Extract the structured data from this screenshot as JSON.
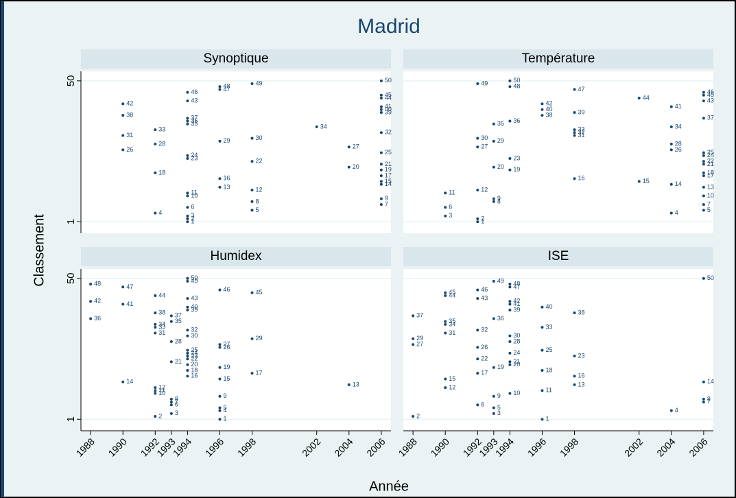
{
  "chart_data": {
    "type": "scatter",
    "title": "Madrid",
    "x_label": "Année",
    "y_label": "Classement",
    "color": "#1a476f",
    "grid": true,
    "xlim": [
      1987.4,
      2006.6
    ],
    "ylim": [
      -3,
      53.3
    ],
    "xticks": [
      1988,
      1990,
      1992,
      1993,
      1994,
      1996,
      1998,
      2002,
      2004,
      2006
    ],
    "yticks": [
      1,
      50
    ],
    "panels": [
      {
        "title": "Synoptique",
        "x": [
          1990,
          1990,
          1990,
          1990,
          1992,
          1992,
          1992,
          1992,
          1994,
          1994,
          1994,
          1994,
          1994,
          1994,
          1994,
          1994,
          1994,
          1994,
          1994,
          1994,
          1994,
          1996,
          1996,
          1996,
          1996,
          1996,
          1998,
          1998,
          1998,
          1998,
          1998,
          1998,
          2002,
          2004,
          2004,
          2006,
          2006,
          2006,
          2006,
          2006,
          2006,
          2006,
          2006,
          2006,
          2006,
          2006,
          2006,
          2006,
          2006,
          2006
        ],
        "y": [
          42,
          38,
          31,
          26,
          33,
          28,
          18,
          4,
          46,
          43,
          37,
          36,
          35,
          24,
          23,
          11,
          10,
          6,
          3,
          2,
          1,
          48,
          47,
          29,
          16,
          13,
          49,
          30,
          22,
          12,
          8,
          5,
          34,
          27,
          20,
          50,
          45,
          44,
          41,
          40,
          39,
          32,
          25,
          21,
          19,
          17,
          15,
          14,
          9,
          7
        ]
      },
      {
        "title": "Température",
        "x": [
          1990,
          1990,
          1990,
          1992,
          1992,
          1992,
          1992,
          1992,
          1992,
          1993,
          1993,
          1993,
          1993,
          1993,
          1994,
          1994,
          1994,
          1994,
          1994,
          1996,
          1996,
          1996,
          1998,
          1998,
          1998,
          1998,
          1998,
          1998,
          2002,
          2002,
          2004,
          2004,
          2004,
          2004,
          2004,
          2004,
          2006,
          2006,
          2006,
          2006,
          2006,
          2006,
          2006,
          2006,
          2006,
          2006,
          2006,
          2006,
          2006,
          2006
        ],
        "y": [
          11,
          6,
          3,
          49,
          30,
          27,
          12,
          2,
          1,
          35,
          29,
          20,
          9,
          8,
          50,
          48,
          36,
          23,
          19,
          42,
          40,
          38,
          47,
          39,
          33,
          32,
          31,
          16,
          44,
          15,
          41,
          34,
          28,
          26,
          14,
          4,
          46,
          45,
          43,
          37,
          25,
          24,
          22,
          21,
          18,
          17,
          13,
          10,
          7,
          5
        ]
      },
      {
        "title": "Humidex",
        "x": [
          1988,
          1988,
          1988,
          1990,
          1990,
          1990,
          1992,
          1992,
          1992,
          1992,
          1992,
          1992,
          1992,
          1992,
          1992,
          1993,
          1993,
          1993,
          1993,
          1993,
          1993,
          1993,
          1993,
          1994,
          1994,
          1994,
          1994,
          1994,
          1994,
          1994,
          1994,
          1994,
          1994,
          1994,
          1994,
          1994,
          1994,
          1996,
          1996,
          1996,
          1996,
          1996,
          1996,
          1996,
          1996,
          1996,
          1998,
          1998,
          1998,
          2004
        ],
        "y": [
          48,
          42,
          36,
          47,
          41,
          14,
          44,
          38,
          34,
          33,
          31,
          12,
          11,
          10,
          2,
          37,
          35,
          28,
          21,
          8,
          7,
          6,
          3,
          50,
          49,
          43,
          40,
          39,
          32,
          30,
          25,
          24,
          23,
          22,
          20,
          18,
          16,
          46,
          27,
          26,
          19,
          15,
          9,
          5,
          4,
          1,
          45,
          29,
          17,
          13
        ]
      },
      {
        "title": "ISE",
        "x": [
          1988,
          1988,
          1988,
          1988,
          1990,
          1990,
          1990,
          1990,
          1990,
          1990,
          1990,
          1992,
          1992,
          1992,
          1992,
          1992,
          1992,
          1992,
          1993,
          1993,
          1993,
          1993,
          1993,
          1993,
          1994,
          1994,
          1994,
          1994,
          1994,
          1994,
          1994,
          1994,
          1994,
          1994,
          1994,
          1996,
          1996,
          1996,
          1996,
          1996,
          1996,
          1998,
          1998,
          1998,
          1998,
          2004,
          2006,
          2006,
          2006,
          2006
        ],
        "y": [
          37,
          29,
          27,
          2,
          45,
          44,
          35,
          34,
          31,
          15,
          12,
          46,
          43,
          32,
          26,
          22,
          17,
          6,
          49,
          36,
          19,
          9,
          5,
          3,
          48,
          47,
          42,
          41,
          39,
          30,
          28,
          24,
          21,
          20,
          10,
          40,
          33,
          25,
          18,
          11,
          1,
          38,
          23,
          16,
          13,
          4,
          50,
          14,
          8,
          7
        ]
      }
    ]
  }
}
